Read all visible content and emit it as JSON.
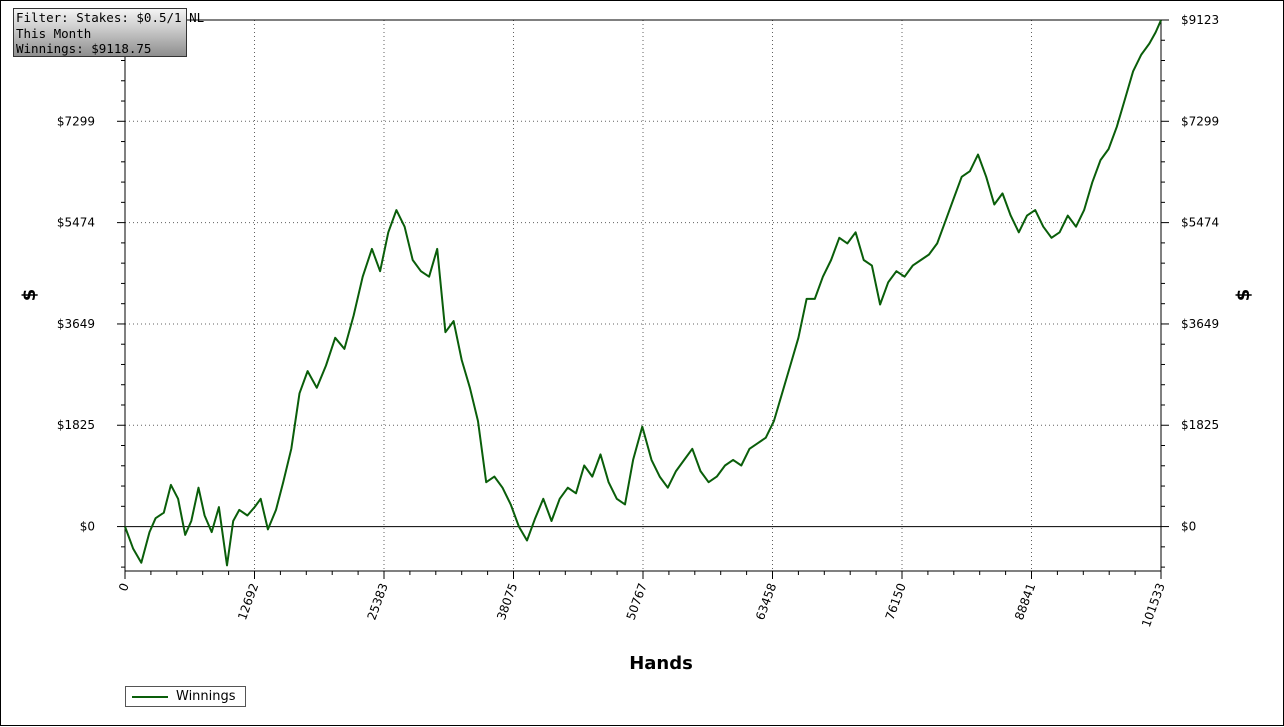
{
  "info_box": {
    "line1": "Filter: Stakes: $0.5/1 NL",
    "line2": "This Month",
    "line3": "Winnings: $9118.75"
  },
  "legend": {
    "label": "Winnings"
  },
  "colors": {
    "series": "#0a5e0a",
    "grid": "#606060",
    "axis": "#000000"
  },
  "chart_data": {
    "type": "line",
    "title": "",
    "xlabel": "Hands",
    "ylabel_left": "$",
    "ylabel_right": "$",
    "xlim": [
      0,
      101533
    ],
    "ylim": [
      -800,
      9123
    ],
    "x_ticks": [
      0,
      12692,
      25383,
      38075,
      50767,
      63458,
      76150,
      88841,
      101533
    ],
    "x_tick_labels": [
      "0",
      "12692",
      "25383",
      "38075",
      "50767",
      "63458",
      "76150",
      "88841",
      "101533"
    ],
    "y_ticks": [
      0,
      1825,
      3649,
      5474,
      7299,
      9123
    ],
    "y_tick_labels": [
      "$0",
      "$1825",
      "$3649",
      "$5474",
      "$7299",
      "$9123"
    ],
    "grid": true,
    "legend_position": "bottom-left",
    "series": [
      {
        "name": "Winnings",
        "x": [
          0,
          800,
          1600,
          2400,
          3000,
          3800,
          4500,
          5200,
          5900,
          6500,
          7200,
          7800,
          8500,
          9200,
          10000,
          10600,
          11200,
          12000,
          12700,
          13300,
          14000,
          14800,
          15500,
          16300,
          17100,
          17900,
          18800,
          19700,
          20600,
          21500,
          22400,
          23300,
          24200,
          25000,
          25800,
          26600,
          27400,
          28200,
          29000,
          29800,
          30600,
          31400,
          32200,
          33000,
          33800,
          34600,
          35400,
          36200,
          37000,
          37800,
          38600,
          39400,
          40200,
          41000,
          41800,
          42600,
          43400,
          44200,
          45000,
          45800,
          46600,
          47400,
          48200,
          49000,
          49800,
          50700,
          51600,
          52400,
          53200,
          54000,
          54800,
          55600,
          56400,
          57200,
          58000,
          58800,
          59600,
          60400,
          61200,
          62000,
          62800,
          63600,
          64400,
          65200,
          66000,
          66800,
          67600,
          68400,
          69200,
          70000,
          70800,
          71600,
          72400,
          73200,
          74000,
          74800,
          75600,
          76400,
          77200,
          78000,
          78800,
          79600,
          80400,
          81200,
          82000,
          82800,
          83600,
          84400,
          85200,
          86000,
          86800,
          87600,
          88400,
          89200,
          90000,
          90800,
          91600,
          92400,
          93200,
          94000,
          94800,
          95600,
          96400,
          97200,
          98000,
          98800,
          99600,
          100400,
          101000,
          101533
        ],
        "y": [
          0,
          -400,
          -650,
          -100,
          150,
          250,
          750,
          500,
          -150,
          100,
          700,
          200,
          -100,
          350,
          -700,
          100,
          300,
          200,
          350,
          500,
          -50,
          300,
          800,
          1400,
          2400,
          2800,
          2500,
          2900,
          3400,
          3200,
          3800,
          4500,
          5000,
          4600,
          5300,
          5700,
          5400,
          4800,
          4600,
          4500,
          5000,
          3500,
          3700,
          3000,
          2500,
          1900,
          800,
          900,
          700,
          400,
          0,
          -250,
          150,
          500,
          100,
          500,
          700,
          600,
          1100,
          900,
          1300,
          800,
          500,
          400,
          1200,
          1800,
          1200,
          900,
          700,
          1000,
          1200,
          1400,
          1000,
          800,
          900,
          1100,
          1200,
          1100,
          1400,
          1500,
          1600,
          1900,
          2400,
          2900,
          3400,
          4100,
          4100,
          4500,
          4800,
          5200,
          5100,
          5300,
          4800,
          4700,
          4000,
          4400,
          4600,
          4500,
          4700,
          4800,
          4900,
          5100,
          5500,
          5900,
          6300,
          6400,
          6700,
          6300,
          5800,
          6000,
          5600,
          5300,
          5600,
          5700,
          5400,
          5200,
          5300,
          5600,
          5400,
          5700,
          6200,
          6600,
          6800,
          7200,
          7700,
          8200,
          8500,
          8700,
          8900,
          9118.75
        ]
      }
    ]
  }
}
